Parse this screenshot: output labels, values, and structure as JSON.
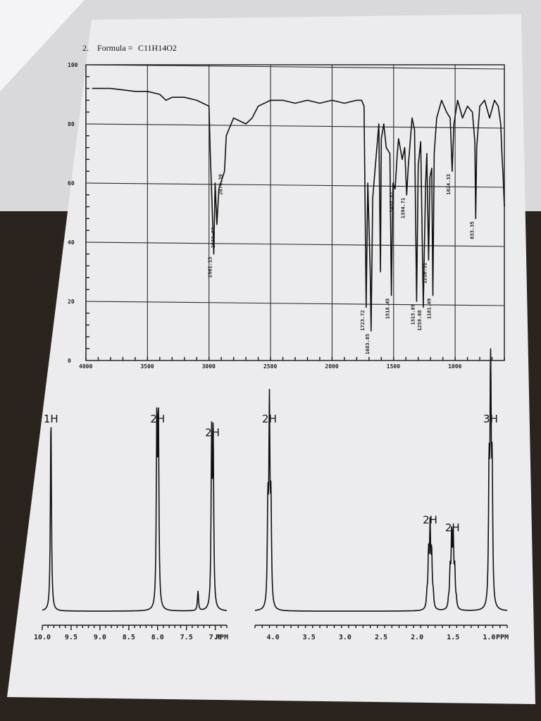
{
  "problem": {
    "number": "2.",
    "formula_label": "Formula = ",
    "formula": "C11H14O2"
  },
  "chart_data": [
    {
      "type": "line",
      "xlim": [
        4000,
        600
      ],
      "ylim": [
        0,
        100
      ],
      "x_ticks": [
        4000,
        3500,
        3000,
        2500,
        2000,
        1500,
        1000
      ],
      "y_ticks": [
        0,
        20,
        40,
        60,
        80,
        100
      ],
      "x_tick_labels": [
        "4000",
        "3500",
        "3000",
        "2500",
        "2000",
        "1500",
        "1000"
      ],
      "y_tick_labels": [
        "0",
        "20",
        "40",
        "60",
        "80",
        "100"
      ],
      "grid": true,
      "series": [
        {
          "x": [
            3950,
            3800,
            3600,
            3500,
            3400,
            3350,
            3300,
            3200,
            3100,
            3050,
            3000,
            2990,
            2961,
            2950,
            2936,
            2920,
            2874,
            2860,
            2800,
            2700,
            2650,
            2600,
            2500,
            2400,
            2300,
            2200,
            2100,
            2000,
            1900,
            1800,
            1760,
            1740,
            1723,
            1710,
            1690,
            1683,
            1670,
            1620,
            1607,
            1600,
            1580,
            1560,
            1530,
            1518,
            1505,
            1488,
            1470,
            1460,
            1430,
            1410,
            1394,
            1380,
            1350,
            1330,
            1313,
            1300,
            1280,
            1259,
            1240,
            1230,
            1216,
            1205,
            1190,
            1181,
            1170,
            1150,
            1110,
            1070,
            1040,
            1024,
            1010,
            980,
            940,
            900,
            860,
            840,
            833,
            825,
            800,
            760,
            720,
            680,
            650,
            630,
            620,
            610,
            600
          ],
          "y": [
            92,
            92,
            91,
            91,
            90,
            88,
            89,
            89,
            88,
            87,
            86,
            70,
            36,
            60,
            46,
            58,
            64,
            76,
            82,
            80,
            82,
            86,
            88,
            88,
            87,
            88,
            87,
            88,
            87,
            88,
            88,
            86,
            18,
            60,
            30,
            10,
            55,
            80,
            30,
            75,
            80,
            72,
            70,
            22,
            60,
            58,
            70,
            75,
            68,
            72,
            56,
            66,
            82,
            78,
            20,
            66,
            74,
            18,
            60,
            70,
            34,
            62,
            65,
            22,
            70,
            82,
            88,
            84,
            82,
            64,
            80,
            88,
            82,
            86,
            84,
            74,
            48,
            72,
            86,
            88,
            82,
            88,
            86,
            80,
            70,
            62,
            52
          ]
        }
      ],
      "peak_labels": [
        {
          "x": 2961,
          "y": 36,
          "text": "2961.13"
        },
        {
          "x": 2936,
          "y": 46,
          "text": "2936.03"
        },
        {
          "x": 2874,
          "y": 64,
          "text": "2874.39"
        },
        {
          "x": 1723,
          "y": 18,
          "text": "1723.72"
        },
        {
          "x": 1683,
          "y": 10,
          "text": "1683.85"
        },
        {
          "x": 1518,
          "y": 22,
          "text": "1518.45"
        },
        {
          "x": 1488,
          "y": 58,
          "text": "1488.82"
        },
        {
          "x": 1394,
          "y": 56,
          "text": "1394.71"
        },
        {
          "x": 1313,
          "y": 20,
          "text": "1313.89"
        },
        {
          "x": 1259,
          "y": 18,
          "text": "1259.88"
        },
        {
          "x": 1216,
          "y": 34,
          "text": "1216.31"
        },
        {
          "x": 1181,
          "y": 22,
          "text": "1181.69"
        },
        {
          "x": 1024,
          "y": 64,
          "text": "1024.33"
        },
        {
          "x": 833,
          "y": 48,
          "text": "833.35"
        }
      ]
    },
    {
      "type": "line",
      "panels": [
        {
          "xlim": [
            10.0,
            6.8
          ],
          "ticks": [
            10.0,
            9.5,
            9.0,
            8.5,
            8.0,
            7.5,
            7.0
          ],
          "tick_labels": [
            "10.0",
            "9.5",
            "9.0",
            "8.5",
            "8.0",
            "7.5",
            "7.0"
          ],
          "unit": "PPM"
        },
        {
          "xlim": [
            4.25,
            0.75
          ],
          "ticks": [
            4.0,
            3.5,
            3.0,
            2.5,
            2.0,
            1.5,
            1.0
          ],
          "tick_labels": [
            "4.0",
            "3.5",
            "3.0",
            "2.5",
            "2.0",
            "1.5",
            "1.0"
          ],
          "unit": "PPM"
        }
      ],
      "peaks": [
        {
          "ppm": 9.85,
          "height": 1.0,
          "mult": 1,
          "label": "1H"
        },
        {
          "ppm": 8.0,
          "height": 0.95,
          "mult": 2,
          "label": "2H"
        },
        {
          "ppm": 7.05,
          "height": 0.85,
          "mult": 2,
          "label": "2H"
        },
        {
          "ppm": 7.3,
          "height": 0.1,
          "mult": 1,
          "label": ""
        },
        {
          "ppm": 4.05,
          "height": 1.0,
          "mult": 3,
          "label": "2H"
        },
        {
          "ppm": 1.82,
          "height": 0.4,
          "mult": 5,
          "label": "2H"
        },
        {
          "ppm": 1.51,
          "height": 0.36,
          "mult": 6,
          "label": "2H"
        },
        {
          "ppm": 0.98,
          "height": 1.3,
          "mult": 3,
          "label": "3H"
        }
      ],
      "integration_labels": [
        {
          "text": "1H",
          "ppm": 9.85,
          "panel": 0
        },
        {
          "text": "2H",
          "ppm": 8.0,
          "panel": 0
        },
        {
          "text": "2H",
          "ppm": 7.05,
          "panel": 0
        },
        {
          "text": "2H",
          "ppm": 4.05,
          "panel": 1
        },
        {
          "text": "2H",
          "ppm": 1.82,
          "panel": 1
        },
        {
          "text": "2H",
          "ppm": 1.51,
          "panel": 1
        },
        {
          "text": "3H",
          "ppm": 0.98,
          "panel": 1
        }
      ]
    }
  ]
}
